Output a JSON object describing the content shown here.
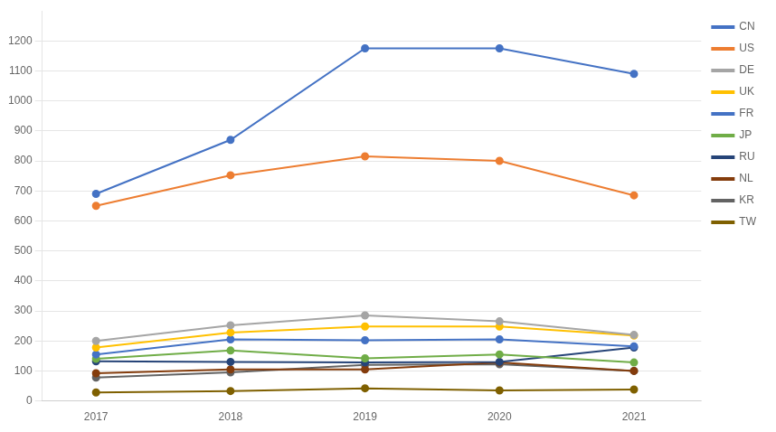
{
  "chart_data": {
    "type": "line",
    "x": [
      2017,
      2018,
      2019,
      2020,
      2021
    ],
    "series": [
      {
        "name": "CN",
        "color": "#4472C4",
        "values": [
          690,
          870,
          1175,
          1175,
          1090
        ]
      },
      {
        "name": "US",
        "color": "#ED7D31",
        "values": [
          650,
          752,
          815,
          800,
          685
        ]
      },
      {
        "name": "DE",
        "color": "#A5A5A5",
        "values": [
          200,
          252,
          285,
          265,
          220
        ]
      },
      {
        "name": "UK",
        "color": "#FFC000",
        "values": [
          178,
          228,
          248,
          248,
          218
        ]
      },
      {
        "name": "FR",
        "color": "#4472C4",
        "values": [
          155,
          205,
          202,
          205,
          182
        ]
      },
      {
        "name": "JP",
        "color": "#70AD47",
        "values": [
          140,
          168,
          142,
          155,
          128
        ]
      },
      {
        "name": "RU",
        "color": "#264478",
        "values": [
          132,
          130,
          128,
          130,
          178
        ]
      },
      {
        "name": "NL",
        "color": "#843C0C",
        "values": [
          92,
          105,
          105,
          128,
          100
        ]
      },
      {
        "name": "KR",
        "color": "#636363",
        "values": [
          78,
          95,
          120,
          122,
          100
        ]
      },
      {
        "name": "TW",
        "color": "#7F6000",
        "values": [
          28,
          33,
          42,
          35,
          38
        ]
      }
    ],
    "xlim": [
      2016.6,
      2021.5
    ],
    "xticks": [
      2017,
      2018,
      2019,
      2020,
      2021
    ],
    "ylim": [
      0,
      1300
    ],
    "yticks": [
      0,
      100,
      200,
      300,
      400,
      500,
      600,
      700,
      800,
      900,
      1000,
      1100,
      1200
    ],
    "grid": "y",
    "legend": "right",
    "marker": "circle",
    "line_style": "solid"
  }
}
